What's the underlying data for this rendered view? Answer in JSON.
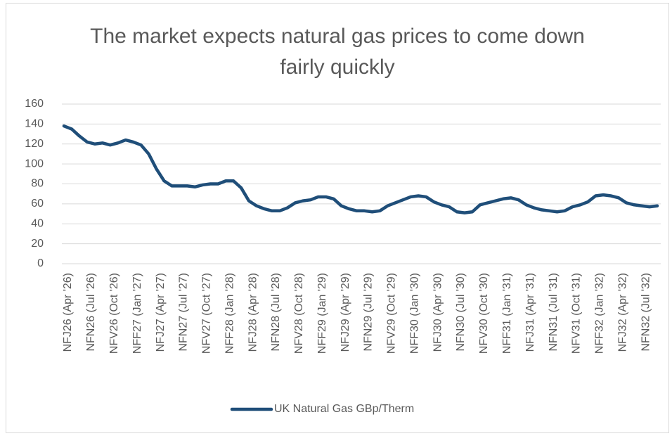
{
  "chart_data": {
    "type": "line",
    "title": "The market expects natural gas prices to come down fairly quickly",
    "categories": [
      "NFJ26 (Apr '26)",
      null,
      null,
      "NFN26 (Jul '26)",
      null,
      null,
      "NFV26 (Oct '26)",
      null,
      null,
      "NFF27 (Jan '27)",
      null,
      null,
      "NFJ27 (Apr '27)",
      null,
      null,
      "NFN27 (Jul '27)",
      null,
      null,
      "NFV27 (Oct '27)",
      null,
      null,
      "NFF28 (Jan '28)",
      null,
      null,
      "NFJ28 (Apr '28)",
      null,
      null,
      "NFN28 (Jul '28)",
      null,
      null,
      "NFV28 (Oct '28)",
      null,
      null,
      "NFF29 (Jan '29)",
      null,
      null,
      "NFJ29 (Apr '29)",
      null,
      null,
      "NFN29 (Jul '29)",
      null,
      null,
      "NFV29 (Oct '29)",
      null,
      null,
      "NFF30 (Jan '30)",
      null,
      null,
      "NFJ30 (Apr '30)",
      null,
      null,
      "NFN30 (Jul '30)",
      null,
      null,
      "NFV30 (Oct '30)",
      null,
      null,
      "NFF31 (Jan '31)",
      null,
      null,
      "NFJ31 (Apr '31)",
      null,
      null,
      "NFN31 (Jul '31)",
      null,
      null,
      "NFV31 (Oct '31)",
      null,
      null,
      "NFF32 (Jan '32)",
      null,
      null,
      "NFJ32 (Apr '32)",
      null,
      null,
      "NFN32 (Jul '32)",
      null,
      null
    ],
    "series": [
      {
        "name": "UK Natural Gas GBp/Therm",
        "color": "#1f4e79",
        "values": [
          138,
          135,
          128,
          122,
          120,
          121,
          119,
          121,
          124,
          122,
          119,
          110,
          95,
          83,
          78,
          78,
          78,
          77,
          79,
          80,
          80,
          83,
          83,
          76,
          63,
          58,
          55,
          53,
          53,
          56,
          61,
          63,
          64,
          67,
          67,
          65,
          58,
          55,
          53,
          53,
          52,
          53,
          58,
          61,
          64,
          67,
          68,
          67,
          62,
          59,
          57,
          52,
          51,
          52,
          59,
          61,
          63,
          65,
          66,
          64,
          59,
          56,
          54,
          53,
          52,
          53,
          57,
          59,
          62,
          68,
          69,
          68,
          66,
          61,
          59,
          58,
          57,
          58
        ]
      }
    ],
    "ylim": [
      0,
      160
    ],
    "yticks": [
      0,
      20,
      40,
      60,
      80,
      100,
      120,
      140,
      160
    ],
    "grid": true,
    "legend": "bottom"
  }
}
